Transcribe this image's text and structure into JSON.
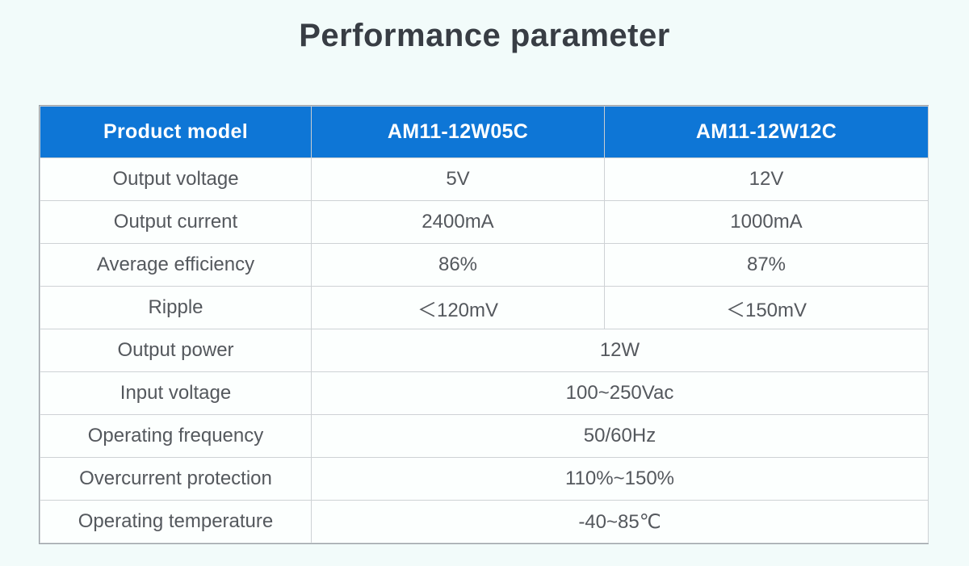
{
  "page": {
    "title": "Performance parameter"
  },
  "colors": {
    "page_background": "#f2fbfa",
    "header_blue": "#0e76d6",
    "header_text": "#ffffff",
    "cell_text": "#54585d",
    "title_text": "#383d44",
    "border_outer": "#9aa0a6",
    "border_inner": "#ced2d5"
  },
  "table": {
    "header": {
      "columns": [
        "Product model",
        "AM11-12W05C",
        "AM11-12W12C"
      ]
    },
    "rows": [
      {
        "label": "Output voltage",
        "values": [
          "5V",
          "12V"
        ]
      },
      {
        "label": "Output current",
        "values": [
          "2400mA",
          "1000mA"
        ]
      },
      {
        "label": "Average efficiency",
        "values": [
          "86%",
          "87%"
        ]
      },
      {
        "label": "Ripple",
        "values": [
          "＜120mV",
          "＜150mV"
        ]
      },
      {
        "label": "Output power",
        "merged": "12W"
      },
      {
        "label": "Input voltage",
        "merged": "100~250Vac"
      },
      {
        "label": "Operating frequency",
        "merged": "50/60Hz"
      },
      {
        "label": "Overcurrent protection",
        "merged": "110%~150%"
      },
      {
        "label": "Operating temperature",
        "merged": "-40~85℃"
      }
    ]
  }
}
